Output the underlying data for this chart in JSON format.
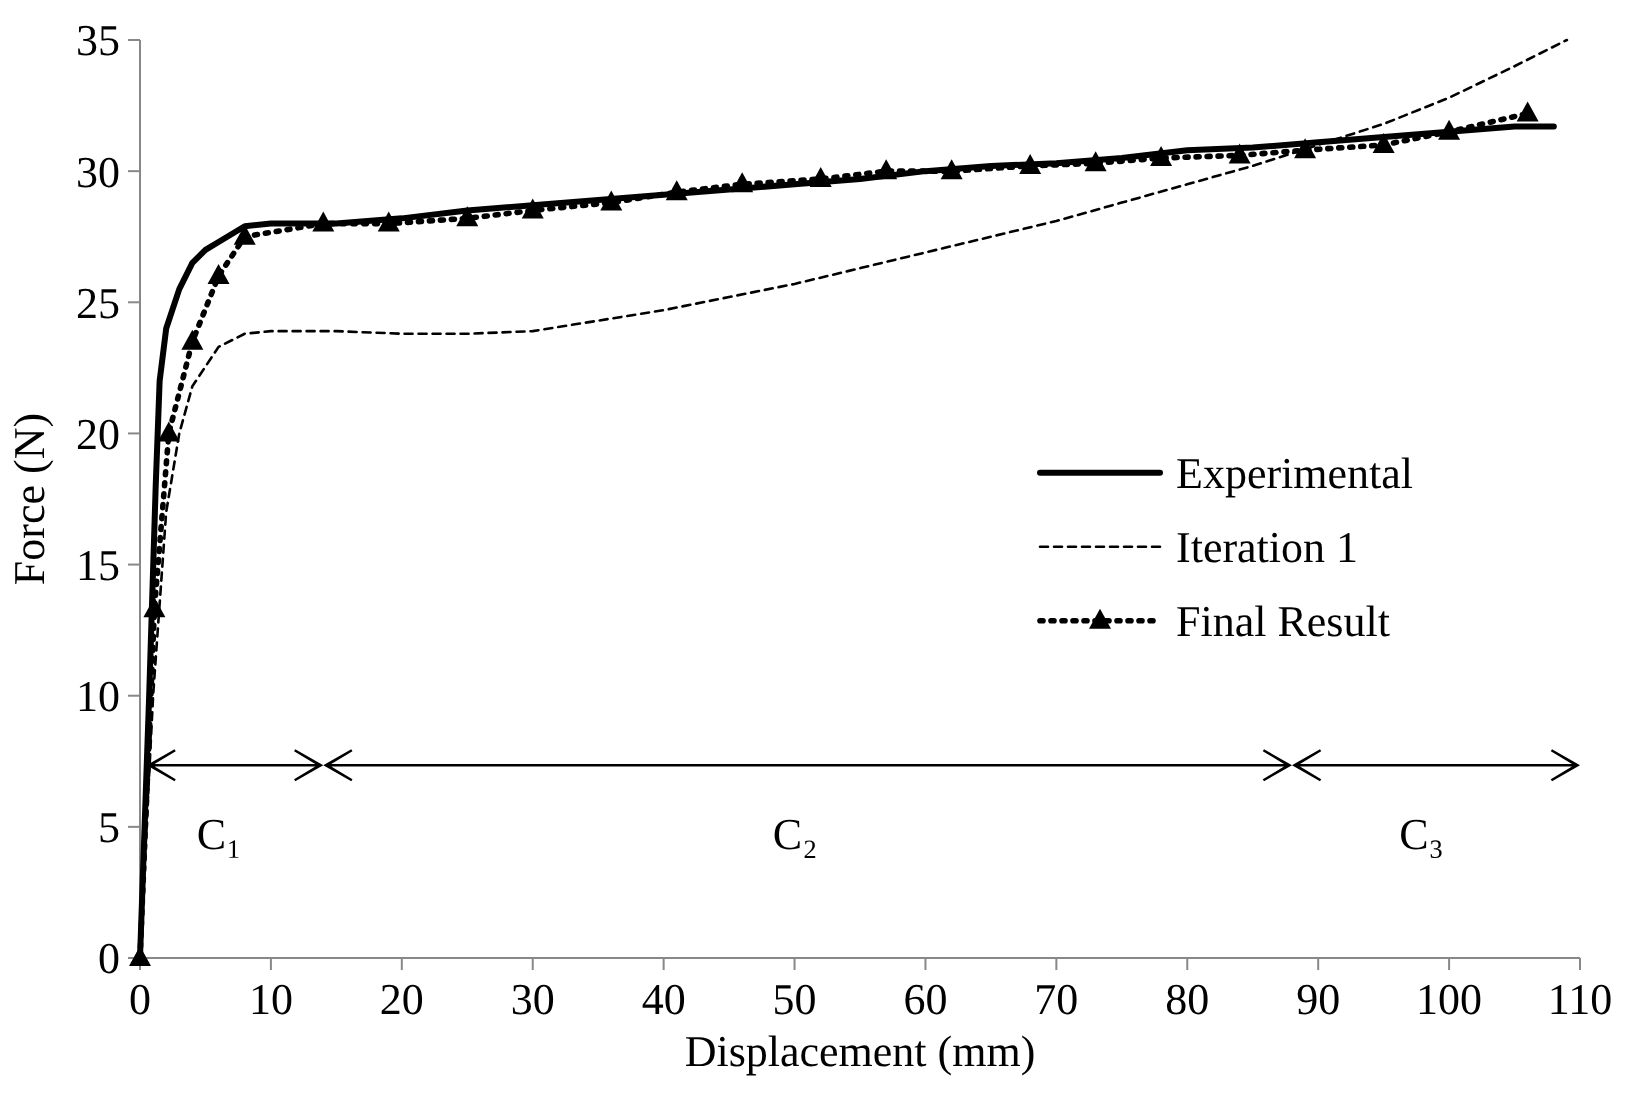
{
  "chart_data": {
    "type": "line",
    "xlabel": "Displacement (mm)",
    "ylabel": "Force (N)",
    "xlim": [
      0,
      110
    ],
    "xticks": [
      0,
      10,
      20,
      30,
      40,
      50,
      60,
      70,
      80,
      90,
      100,
      110
    ],
    "ylim": [
      0,
      35
    ],
    "yticks": [
      0,
      5,
      10,
      15,
      20,
      25,
      30,
      35
    ],
    "grid": false,
    "legend": "right",
    "series": [
      {
        "name": "Experimental",
        "color": "#000000",
        "line_style": "solid",
        "marker": "none",
        "x": [
          0,
          0.7,
          1.2,
          1.5,
          2,
          3,
          4,
          5,
          6,
          8,
          10,
          15,
          20,
          25,
          30,
          35,
          40,
          45,
          50,
          55,
          60,
          65,
          70,
          75,
          80,
          85,
          90,
          95,
          100,
          105,
          108
        ],
        "values": [
          0,
          10,
          18,
          22,
          24,
          25.5,
          26.5,
          27,
          27.3,
          27.9,
          28,
          28,
          28.2,
          28.5,
          28.7,
          28.9,
          29.1,
          29.3,
          29.5,
          29.7,
          30,
          30.2,
          30.3,
          30.5,
          30.8,
          30.9,
          31.1,
          31.3,
          31.5,
          31.7,
          31.7
        ]
      },
      {
        "name": "Iteration 1",
        "color": "#000000",
        "line_style": "dashed",
        "marker": "none",
        "x": [
          0,
          1,
          2,
          3,
          4,
          6,
          8,
          10,
          15,
          20,
          25,
          30,
          35,
          40,
          45,
          50,
          55,
          60,
          65,
          70,
          75,
          80,
          85,
          90,
          95,
          100,
          105,
          109
        ],
        "values": [
          0,
          10,
          17,
          20,
          21.8,
          23.3,
          23.8,
          23.9,
          23.9,
          23.8,
          23.8,
          23.9,
          24.3,
          24.7,
          25.2,
          25.7,
          26.3,
          26.9,
          27.5,
          28.1,
          28.8,
          29.5,
          30.2,
          31,
          31.8,
          32.8,
          34,
          35
        ]
      },
      {
        "name": "Final Result",
        "color": "#000000",
        "line_style": "dotted",
        "marker": "triangle",
        "x": [
          0,
          1.1,
          2.2,
          4,
          6,
          8,
          14,
          19,
          25,
          30,
          36,
          41,
          46,
          52,
          57,
          62,
          68,
          73,
          78,
          84,
          89,
          95,
          100,
          106
        ],
        "values": [
          0,
          13.3,
          20,
          23.5,
          26,
          27.5,
          28,
          28,
          28.2,
          28.5,
          28.8,
          29.2,
          29.5,
          29.7,
          30,
          30,
          30.2,
          30.3,
          30.5,
          30.6,
          30.8,
          31,
          31.5,
          32.2
        ]
      }
    ],
    "annotations": [
      "C₁",
      "C₂",
      "C₃"
    ]
  }
}
